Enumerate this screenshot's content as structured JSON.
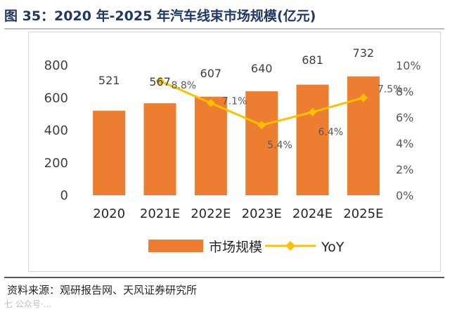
{
  "figure": {
    "title": "图 35：2020 年-2025 年汽车线束市场规模(亿元)",
    "source": "资料来源：观研报告网、天风证券研究所",
    "watermark": "七 公众号·..."
  },
  "chart_data": {
    "type": "bar",
    "categories": [
      "2020",
      "2021E",
      "2022E",
      "2023E",
      "2024E",
      "2025E"
    ],
    "series": [
      {
        "name": "市场规模",
        "type": "bar",
        "axis": "left",
        "values": [
          521,
          567,
          607,
          640,
          681,
          732
        ],
        "labels": [
          "521",
          "567",
          "607",
          "640",
          "681",
          "732"
        ],
        "color": "#ed7d31"
      },
      {
        "name": "YoY",
        "type": "line",
        "axis": "right",
        "values": [
          null,
          8.8,
          7.1,
          5.4,
          6.4,
          7.5
        ],
        "labels": [
          "",
          "8.8%",
          "7.1%",
          "5.4%",
          "6.4%",
          "7.5%"
        ],
        "color": "#ffc000"
      }
    ],
    "left_axis": {
      "min": 0,
      "max": 800,
      "ticks": [
        "0",
        "200",
        "400",
        "600",
        "800"
      ]
    },
    "right_axis": {
      "min": 0,
      "max": 10,
      "ticks": [
        "0%",
        "2%",
        "4%",
        "6%",
        "8%",
        "10%"
      ]
    },
    "legend": {
      "position": "bottom",
      "entries": [
        "市场规模",
        "YoY"
      ]
    }
  }
}
